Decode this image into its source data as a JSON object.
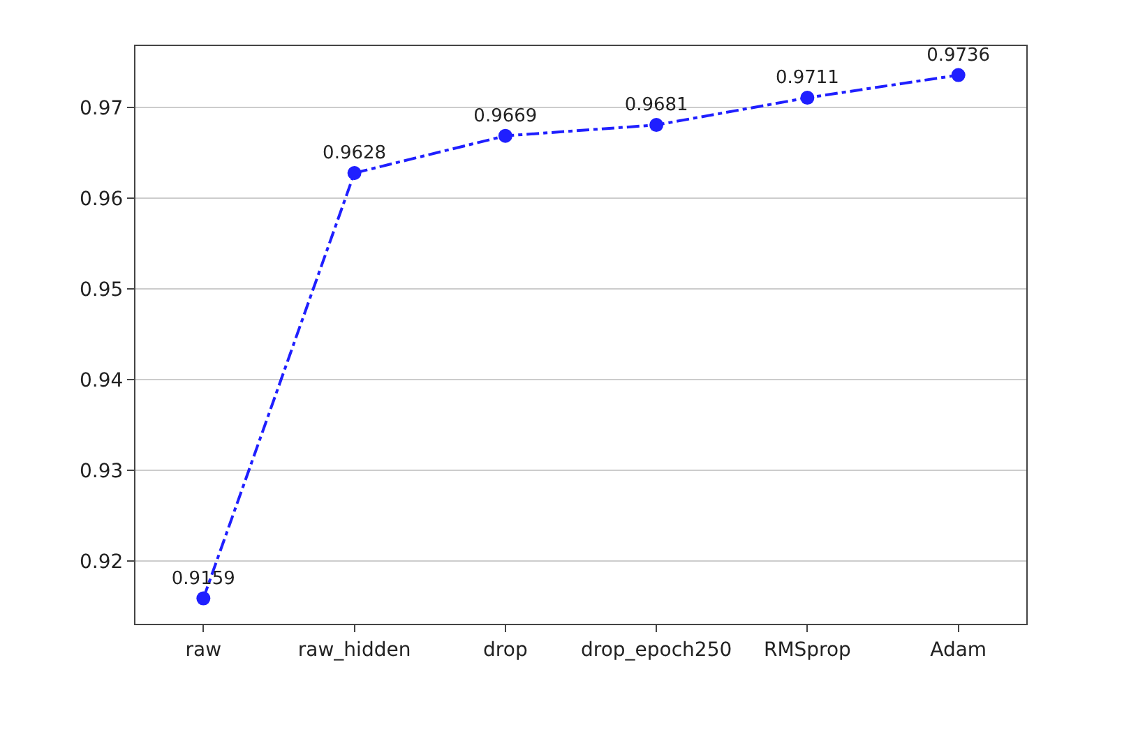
{
  "chart_data": {
    "type": "line",
    "categories": [
      "raw",
      "raw_hidden",
      "drop",
      "drop_epoch250",
      "RMSprop",
      "Adam"
    ],
    "series": [
      {
        "color": "#1f1fff",
        "values": [
          0.9159,
          0.9628,
          0.9669,
          0.9681,
          0.9711,
          0.9736
        ]
      }
    ],
    "ylim": [
      0.9131,
      0.9768
    ],
    "yticks": [
      0.92,
      0.93,
      0.94,
      0.95,
      0.96,
      0.97
    ],
    "grid": "y",
    "marker": "circle",
    "line_style": "dashdot",
    "data_labels": true,
    "legend": false
  }
}
